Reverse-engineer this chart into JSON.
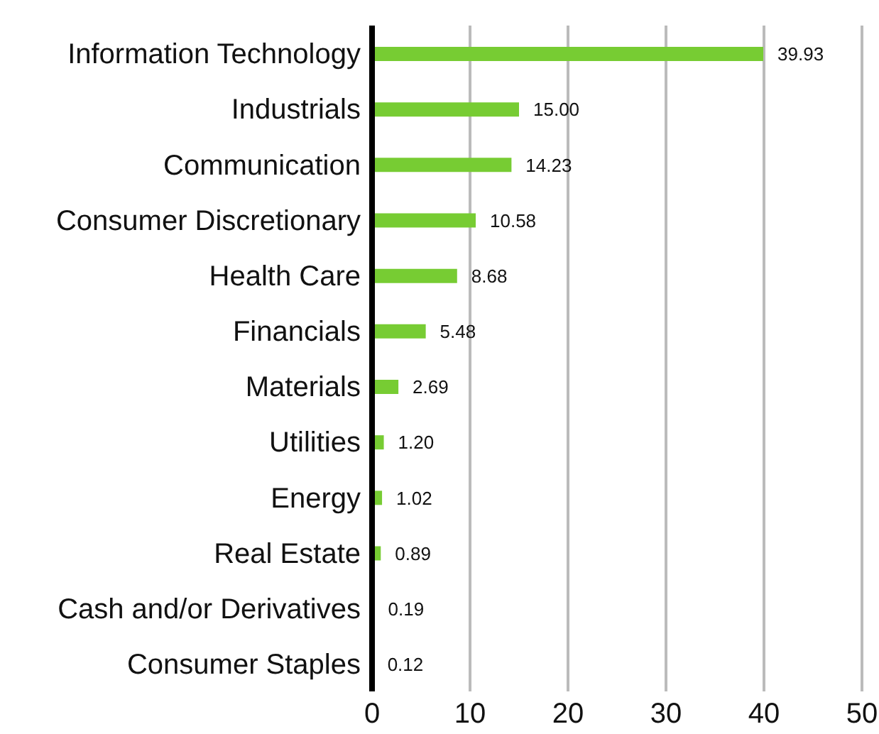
{
  "chart_data": {
    "type": "bar",
    "orientation": "horizontal",
    "categories": [
      "Information Technology",
      "Industrials",
      "Communication",
      "Consumer Discretionary",
      "Health Care",
      "Financials",
      "Materials",
      "Utilities",
      "Energy",
      "Real Estate",
      "Cash and/or Derivatives",
      "Consumer Staples"
    ],
    "values": [
      39.93,
      15.0,
      14.23,
      10.58,
      8.68,
      5.48,
      2.69,
      1.2,
      1.02,
      0.89,
      0.19,
      0.12
    ],
    "value_labels": [
      "39.93",
      "15.00",
      "14.23",
      "10.58",
      "8.68",
      "5.48",
      "2.69",
      "1.20",
      "1.02",
      "0.89",
      "0.19",
      "0.12"
    ],
    "color": "#77cc33",
    "xlim": [
      0,
      50
    ],
    "xticks": [
      0,
      10,
      20,
      30,
      40,
      50
    ],
    "grid": "x"
  }
}
